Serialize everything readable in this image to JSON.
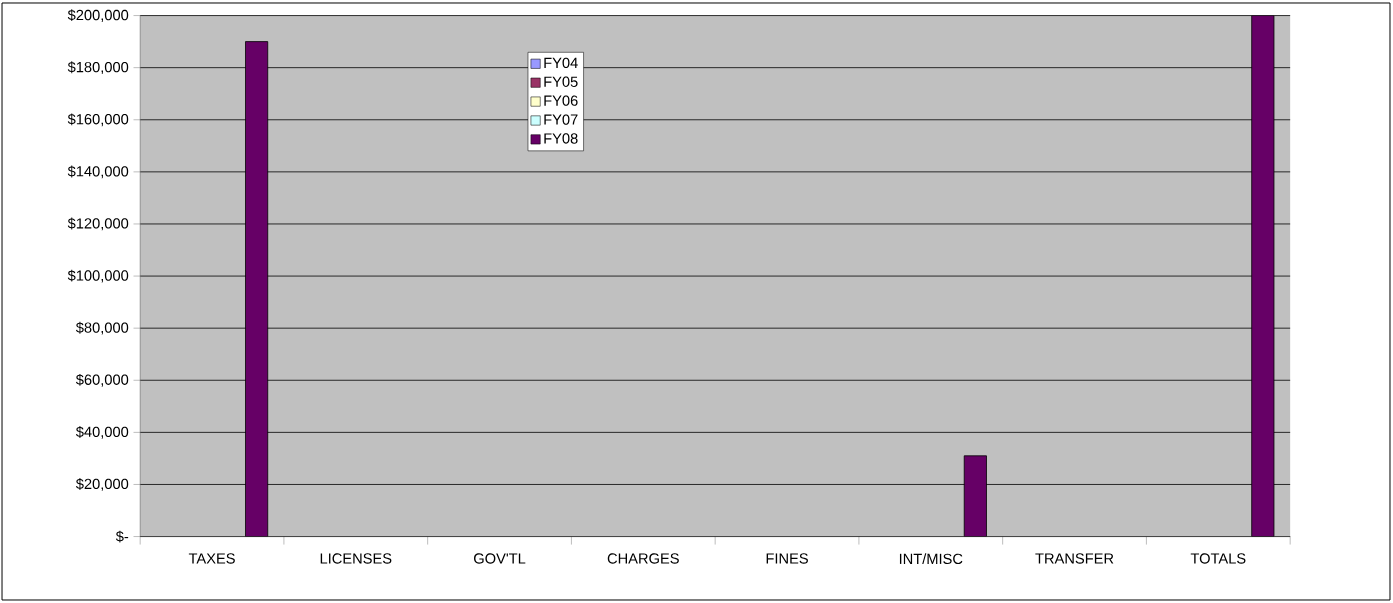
{
  "chart_data": {
    "type": "bar",
    "categories": [
      "TAXES",
      "LICENSES",
      "GOV'TL",
      "CHARGES",
      "FINES",
      "INT/MISC",
      "TRANSFER",
      "TOTALS"
    ],
    "series": [
      {
        "name": "FY04",
        "color": "#9999ff",
        "values": [
          null,
          null,
          null,
          null,
          null,
          null,
          null,
          null
        ]
      },
      {
        "name": "FY05",
        "color": "#993366",
        "values": [
          null,
          null,
          null,
          null,
          null,
          null,
          null,
          null
        ]
      },
      {
        "name": "FY06",
        "color": "#ffffcc",
        "values": [
          null,
          null,
          null,
          null,
          null,
          null,
          null,
          null
        ]
      },
      {
        "name": "FY07",
        "color": "#ccffff",
        "values": [
          null,
          null,
          null,
          null,
          null,
          null,
          null,
          null
        ]
      },
      {
        "name": "FY08",
        "color": "#660066",
        "values": [
          190000,
          null,
          null,
          null,
          null,
          31000,
          null,
          200000
        ]
      }
    ],
    "ylim": [
      0,
      200000
    ],
    "yticks": [
      {
        "value": 0,
        "label": "$-"
      },
      {
        "value": 20000,
        "label": "$20,000"
      },
      {
        "value": 40000,
        "label": "$40,000"
      },
      {
        "value": 60000,
        "label": "$60,000"
      },
      {
        "value": 80000,
        "label": "$80,000"
      },
      {
        "value": 100000,
        "label": "$100,000"
      },
      {
        "value": 120000,
        "label": "$120,000"
      },
      {
        "value": 140000,
        "label": "$140,000"
      },
      {
        "value": 160000,
        "label": "$160,000"
      },
      {
        "value": 180000,
        "label": "$180,000"
      },
      {
        "value": 200000,
        "label": "$200,000"
      }
    ],
    "grid": "y",
    "legend": "top"
  }
}
